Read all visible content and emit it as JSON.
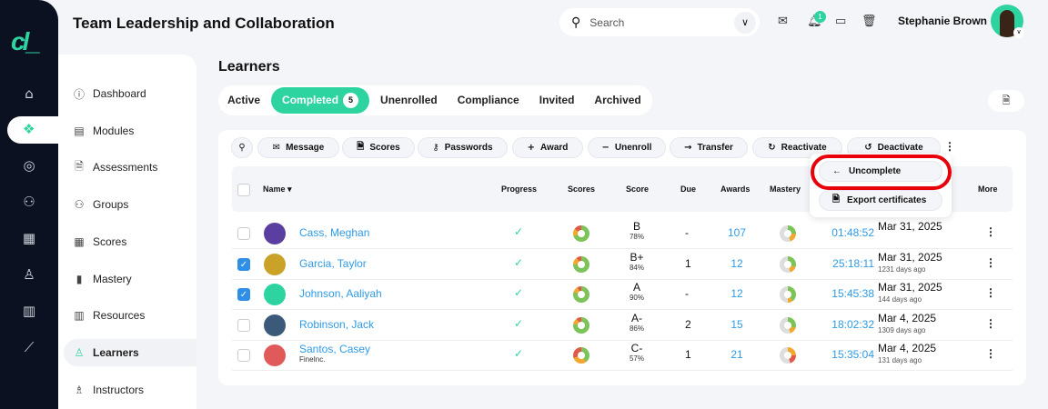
{
  "header": {
    "title": "Team Leadership and Collaboration",
    "search_placeholder": "Search",
    "notification_count": "1",
    "user_name": "Stephanie Brown"
  },
  "sidebar": {
    "items": [
      {
        "label": "Dashboard",
        "icon": "dashboard-icon"
      },
      {
        "label": "Modules",
        "icon": "book-icon"
      },
      {
        "label": "Assessments",
        "icon": "file-check-icon"
      },
      {
        "label": "Groups",
        "icon": "users-icon"
      },
      {
        "label": "Scores",
        "icon": "table-icon"
      },
      {
        "label": "Mastery",
        "icon": "bars-icon"
      },
      {
        "label": "Resources",
        "icon": "library-icon"
      },
      {
        "label": "Learners",
        "icon": "user-icon",
        "active": true
      },
      {
        "label": "Instructors",
        "icon": "instructor-icon"
      }
    ]
  },
  "page": {
    "heading": "Learners",
    "tabs": [
      {
        "label": "Active"
      },
      {
        "label": "Completed",
        "count": "5",
        "active": true
      },
      {
        "label": "Unenrolled"
      },
      {
        "label": "Compliance"
      },
      {
        "label": "Invited"
      },
      {
        "label": "Archived"
      }
    ],
    "toolbar": [
      "Message",
      "Scores",
      "Passwords",
      "Award",
      "Unenroll",
      "Transfer",
      "Reactivate",
      "Deactivate"
    ],
    "menu": {
      "uncomplete": "Uncomplete",
      "export": "Export certificates"
    },
    "columns": {
      "name": "Name",
      "progress": "Progress",
      "scores": "Scores",
      "score": "Score",
      "due": "Due",
      "awards": "Awards",
      "mastery": "Mastery",
      "more": "More"
    },
    "rows": [
      {
        "name": "Cass, Meghan",
        "org": "",
        "checked": false,
        "grade": "B",
        "pct": "78%",
        "due": "-",
        "awards": "107",
        "time": "01:48:52",
        "date": "Mar 31, 2025",
        "ago": ""
      },
      {
        "name": "Garcia, Taylor",
        "org": "",
        "checked": true,
        "grade": "B+",
        "pct": "84%",
        "due": "1",
        "awards": "12",
        "time": "25:18:11",
        "date": "Mar 31, 2025",
        "ago": "1231 days ago"
      },
      {
        "name": "Johnson, Aaliyah",
        "org": "",
        "checked": true,
        "grade": "A",
        "pct": "90%",
        "due": "-",
        "awards": "12",
        "time": "15:45:38",
        "date": "Mar 31, 2025",
        "ago": "144 days ago"
      },
      {
        "name": "Robinson, Jack",
        "org": "",
        "checked": false,
        "grade": "A-",
        "pct": "86%",
        "due": "2",
        "awards": "15",
        "time": "18:02:32",
        "date": "Mar 4, 2025",
        "ago": "1309 days ago"
      },
      {
        "name": "Santos, Casey",
        "org": "FineInc.",
        "checked": false,
        "grade": "C-",
        "pct": "57%",
        "due": "1",
        "awards": "21",
        "time": "15:35:04",
        "date": "Mar 4, 2025",
        "ago": "131 days ago"
      }
    ]
  },
  "colors": {
    "accent": "#2dd4a0",
    "link": "#2f9be6",
    "highlight": "#e8000b",
    "rail": "#0b1120"
  }
}
